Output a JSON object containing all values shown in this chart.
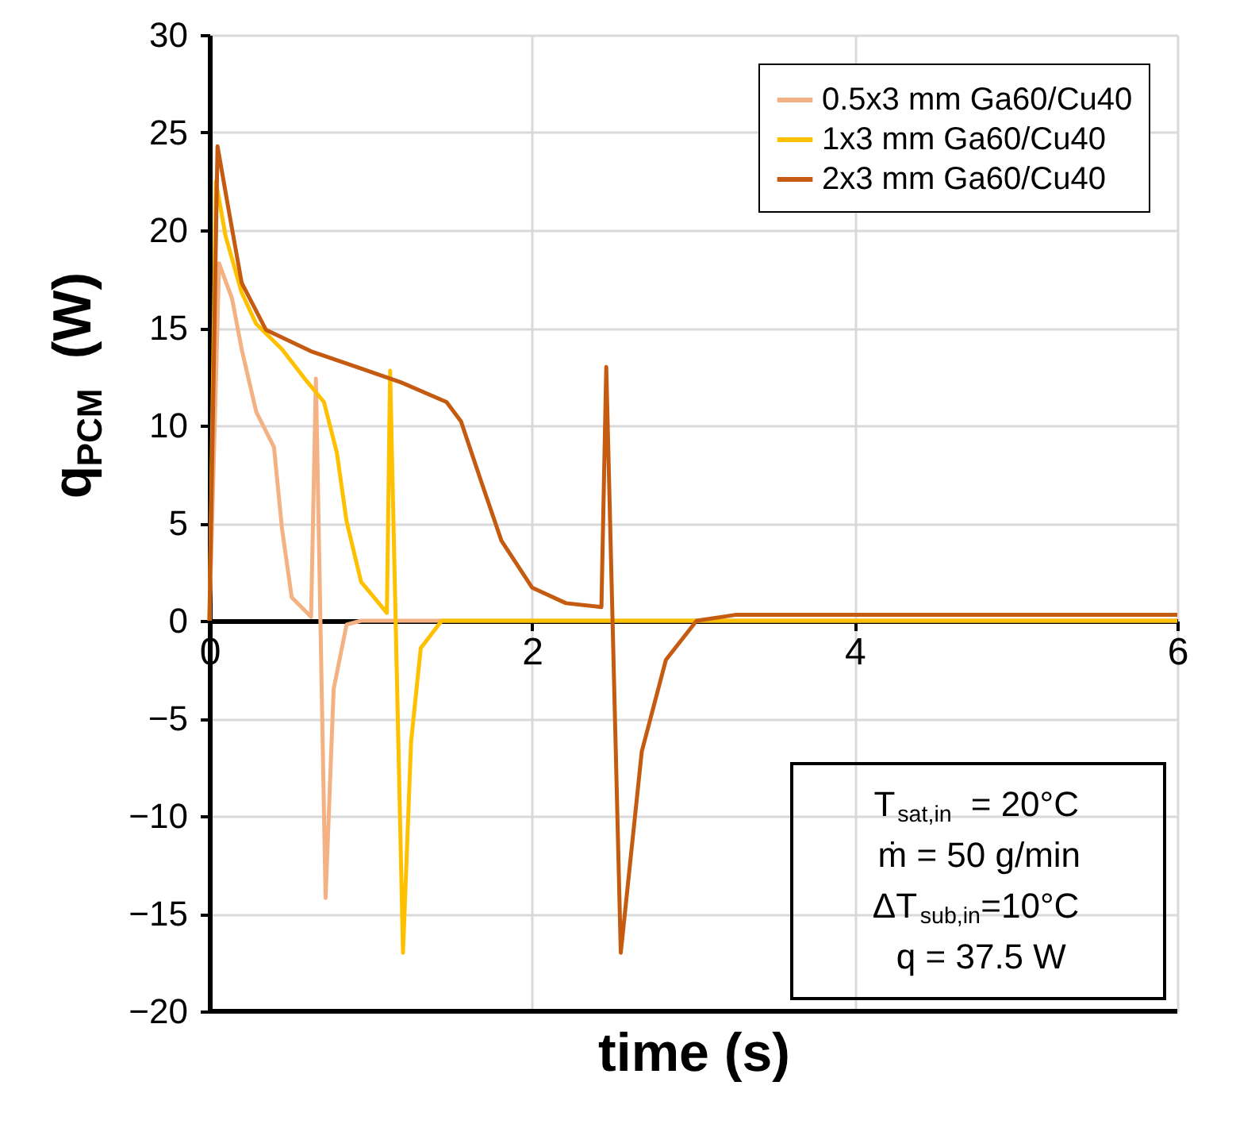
{
  "chart_data": {
    "type": "line",
    "xlabel": "time (s)",
    "ylabel": "q$_{PCM}$ (W)",
    "xlim": [
      0,
      6
    ],
    "xticks": [
      0,
      2,
      4,
      6
    ],
    "ylim": [
      -20,
      30
    ],
    "yticks": [
      -20,
      -15,
      -10,
      -5,
      0,
      5,
      10,
      15,
      20,
      25,
      30
    ],
    "grid": true,
    "legend": "top right",
    "line_style": "solid",
    "marker": "none",
    "series": [
      {
        "name": "0.5x3 mm Ga60/Cu40",
        "color": "#f4b183",
        "x": [
          0,
          0.06,
          0.14,
          0.2,
          0.29,
          0.4,
          0.45,
          0.51,
          0.63,
          0.66,
          0.72,
          0.77,
          0.85,
          0.94,
          6
        ],
        "values": [
          0,
          18.3,
          16.5,
          13.9,
          10.7,
          8.9,
          4.7,
          1.2,
          0.2,
          12.4,
          -14.2,
          -3.5,
          -0.2,
          0,
          0
        ]
      },
      {
        "name": "1x3 mm Ga60/Cu40",
        "color": "#ffc000",
        "x": [
          0,
          0.04,
          0.1,
          0.2,
          0.29,
          0.45,
          0.6,
          0.71,
          0.79,
          0.85,
          0.94,
          1.1,
          1.12,
          1.2,
          1.25,
          1.31,
          1.44,
          6
        ],
        "values": [
          0,
          22.5,
          19.7,
          16.8,
          15.2,
          13.9,
          12.3,
          11.2,
          8.6,
          5.1,
          2.0,
          0.4,
          12.8,
          -17.0,
          -6.2,
          -1.4,
          0,
          0
        ]
      },
      {
        "name": "2x3 mm Ga60/Cu40",
        "color": "#c55a11",
        "x": [
          0,
          0.05,
          0.12,
          0.2,
          0.35,
          0.63,
          0.91,
          1.19,
          1.47,
          1.56,
          1.69,
          1.81,
          2.0,
          2.21,
          2.43,
          2.46,
          2.55,
          2.68,
          2.83,
          3.02,
          3.26,
          6
        ],
        "values": [
          0,
          24.3,
          21.0,
          17.3,
          14.9,
          13.8,
          13.0,
          12.2,
          11.2,
          10.2,
          7.0,
          4.1,
          1.7,
          0.9,
          0.7,
          13.0,
          -17.0,
          -6.7,
          -2.0,
          0,
          0.3,
          0.3
        ]
      }
    ],
    "annotations": [
      "T$_{sat,in}$ = 20°C",
      "ṁ = 50 g/min",
      "ΔT$_{sub,in}$=10°C",
      "q = 37.5 W"
    ]
  }
}
